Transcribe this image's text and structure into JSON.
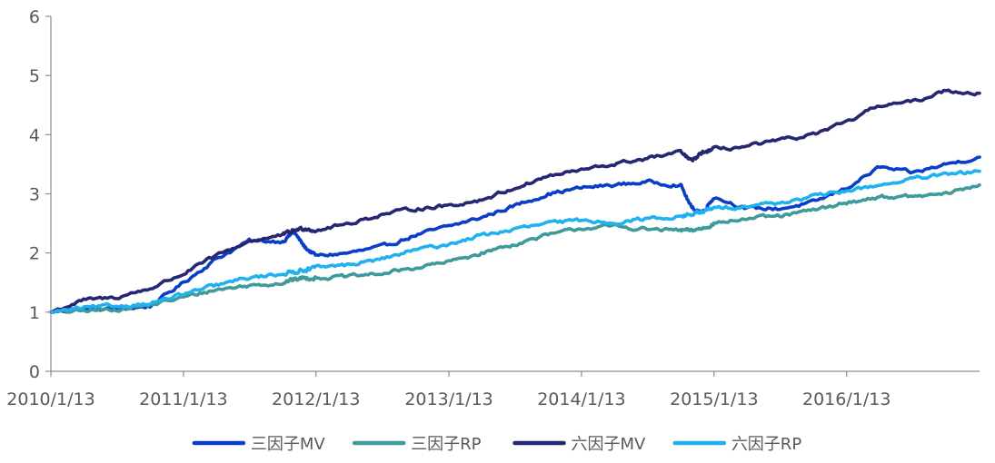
{
  "chart_data": {
    "type": "line",
    "title": "",
    "xlabel": "",
    "ylabel": "",
    "x_tick_labels": [
      "2010/1/13",
      "2011/1/13",
      "2012/1/13",
      "2013/1/13",
      "2014/1/13",
      "2015/1/13",
      "2016/1/13"
    ],
    "y_tick_labels": [
      "0",
      "1",
      "2",
      "3",
      "4",
      "5",
      "6"
    ],
    "ylim": [
      0,
      6
    ],
    "xlim": [
      "2010/1/13",
      "2017/1/13"
    ],
    "grid": false,
    "legend_position": "bottom",
    "x": [
      "2010/1/13",
      "2010/4/13",
      "2010/7/13",
      "2010/10/13",
      "2011/1/13",
      "2011/4/13",
      "2011/7/13",
      "2011/10/13",
      "2011/11/13",
      "2011/12/13",
      "2012/1/13",
      "2012/4/13",
      "2012/7/13",
      "2012/10/13",
      "2013/1/13",
      "2013/4/13",
      "2013/7/13",
      "2013/10/13",
      "2014/1/13",
      "2014/4/13",
      "2014/7/13",
      "2014/10/13",
      "2014/11/13",
      "2014/12/13",
      "2015/1/13",
      "2015/4/13",
      "2015/7/13",
      "2015/10/13",
      "2016/1/13",
      "2016/4/13",
      "2016/7/13",
      "2016/10/13",
      "2017/1/13"
    ],
    "series": [
      {
        "name": "三因子MV",
        "color": "#0b3ec7",
        "values": [
          1.0,
          1.05,
          1.05,
          1.1,
          1.5,
          1.9,
          2.2,
          2.2,
          2.35,
          2.1,
          1.95,
          2.0,
          2.1,
          2.3,
          2.45,
          2.6,
          2.8,
          3.0,
          3.1,
          3.15,
          3.2,
          3.15,
          2.75,
          2.7,
          2.95,
          2.75,
          2.75,
          2.85,
          3.1,
          3.45,
          3.35,
          3.5,
          3.62
        ]
      },
      {
        "name": "三因子RP",
        "color": "#3f9a9a",
        "values": [
          1.0,
          1.02,
          1.05,
          1.12,
          1.25,
          1.38,
          1.45,
          1.5,
          1.55,
          1.58,
          1.58,
          1.6,
          1.65,
          1.75,
          1.85,
          2.0,
          2.15,
          2.3,
          2.42,
          2.45,
          2.4,
          2.38,
          2.38,
          2.42,
          2.5,
          2.58,
          2.62,
          2.72,
          2.85,
          2.95,
          2.95,
          3.0,
          3.15
        ]
      },
      {
        "name": "六因子MV",
        "color": "#262673",
        "values": [
          1.0,
          1.2,
          1.25,
          1.4,
          1.65,
          1.95,
          2.2,
          2.3,
          2.38,
          2.42,
          2.38,
          2.5,
          2.65,
          2.75,
          2.8,
          2.9,
          3.1,
          3.3,
          3.4,
          3.5,
          3.6,
          3.7,
          3.55,
          3.7,
          3.75,
          3.8,
          3.9,
          4.0,
          4.2,
          4.5,
          4.55,
          4.75,
          4.7
        ]
      },
      {
        "name": "六因子RP",
        "color": "#1fb2ee",
        "values": [
          1.0,
          1.07,
          1.1,
          1.15,
          1.3,
          1.45,
          1.58,
          1.65,
          1.68,
          1.72,
          1.75,
          1.8,
          1.9,
          2.05,
          2.15,
          2.3,
          2.4,
          2.5,
          2.55,
          2.52,
          2.58,
          2.62,
          2.65,
          2.7,
          2.75,
          2.8,
          2.85,
          2.95,
          3.05,
          3.15,
          3.25,
          3.32,
          3.38
        ]
      }
    ]
  }
}
